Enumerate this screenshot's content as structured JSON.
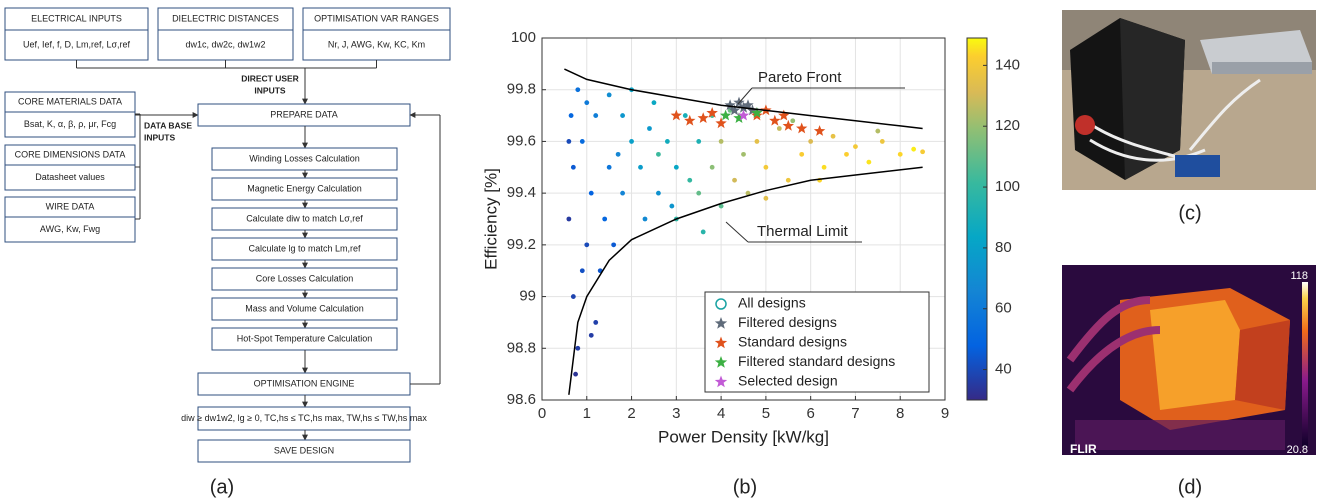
{
  "flowchart": {
    "inputs": [
      {
        "title": "ELECTRICAL INPUTS",
        "body": "Uef, Ief, f, D, Lm,ref, Lσ,ref"
      },
      {
        "title": "DIELECTRIC DISTANCES",
        "body": "dw1c, dw2c, dw1w2"
      },
      {
        "title": "OPTIMISATION VAR RANGES",
        "body": "Nr, J, AWG, Kw, KC, Km"
      }
    ],
    "direct_label": [
      "DIRECT USER",
      "INPUTS"
    ],
    "databases": [
      {
        "title": "CORE MATERIALS DATA",
        "body": "Bsat, K, α, β, ρ, μr, Fcg"
      },
      {
        "title": "CORE DIMENSIONS DATA",
        "body": "Datasheet values"
      },
      {
        "title": "WIRE DATA",
        "body": "AWG, Kw, Fwg"
      }
    ],
    "database_label": [
      "DATA BASE",
      "INPUTS"
    ],
    "prepare": "PREPARE DATA",
    "steps": [
      "Winding Losses Calculation",
      "Magnetic Energy Calculation",
      "Calculate diw to match Lσ,ref",
      "Calculate lg to match Lm,ref",
      "Core Losses Calculation",
      "Mass and Volume Calculation",
      "Hot-Spot Temperature Calculation"
    ],
    "engine": "OPTIMISATION ENGINE",
    "constraints": "diw ≥ dw1w2, lg ≥ 0, TC,hs ≤ TC,hs max, TW,hs ≤ TW,hs max",
    "save": "SAVE DESIGN",
    "caption": "(a)"
  },
  "chart_data": {
    "type": "scatter",
    "caption": "(b)",
    "xlabel": "Power Density [kW/kg]",
    "ylabel": "Efficiency [%]",
    "xlim": [
      0,
      9
    ],
    "ylim": [
      98.6,
      100
    ],
    "xticks": [
      0,
      1,
      2,
      3,
      4,
      5,
      6,
      7,
      8,
      9
    ],
    "yticks": [
      98.6,
      98.8,
      99,
      99.2,
      99.4,
      99.6,
      99.8,
      100
    ],
    "grid": true,
    "legend": "lower right",
    "colormap": "parula",
    "clim": [
      30,
      149
    ],
    "colorbar_ticks": [
      40,
      60,
      80,
      100,
      120,
      140
    ],
    "series": [
      {
        "name": "All designs",
        "color": "#1aa3a3",
        "marker": "circle",
        "x": [
          0.6,
          0.7,
          0.8,
          0.9,
          0.7,
          0.65,
          0.8,
          1.0,
          1.1,
          0.9,
          1.2,
          1.3,
          1.0,
          1.2,
          1.4,
          1.5,
          0.75,
          1.6,
          0.6,
          1.1,
          1.5,
          1.8,
          2.0,
          2.2,
          1.8,
          2.5,
          2.6,
          2.3,
          2.0,
          2.8,
          3.0,
          3.2,
          2.4,
          1.7,
          2.9,
          3.5,
          3.5,
          3.8,
          4.0,
          4.3,
          4.5,
          4.8,
          5.0,
          5.3,
          5.5,
          5.8,
          6.0,
          6.3,
          6.5,
          6.8,
          7.0,
          7.3,
          7.6,
          8.0,
          8.3,
          8.5,
          3.8,
          4.2,
          3.0,
          2.6,
          3.3,
          4.6,
          5.6,
          6.2,
          7.5,
          3.6,
          4.0,
          5.0
        ],
        "values": [
          99.3,
          99.0,
          98.8,
          99.1,
          99.5,
          99.7,
          99.8,
          99.2,
          99.4,
          99.6,
          98.9,
          99.1,
          99.75,
          99.7,
          99.3,
          99.5,
          98.7,
          99.2,
          99.6,
          98.85,
          99.78,
          99.7,
          99.6,
          99.5,
          99.4,
          99.75,
          99.4,
          99.3,
          99.8,
          99.6,
          99.5,
          99.7,
          99.65,
          99.55,
          99.35,
          99.6,
          99.4,
          99.5,
          99.6,
          99.45,
          99.55,
          99.6,
          99.5,
          99.65,
          99.45,
          99.55,
          99.6,
          99.5,
          99.62,
          99.55,
          99.58,
          99.52,
          99.6,
          99.55,
          99.57,
          99.56,
          99.7,
          99.72,
          99.3,
          99.55,
          99.45,
          99.4,
          99.68,
          99.45,
          99.64,
          99.25,
          99.35,
          99.38
        ],
        "color_values": [
          35,
          38,
          36,
          42,
          45,
          50,
          55,
          40,
          48,
          52,
          37,
          44,
          60,
          62,
          50,
          58,
          33,
          45,
          40,
          36,
          70,
          75,
          80,
          78,
          65,
          85,
          72,
          68,
          82,
          88,
          84,
          90,
          76,
          66,
          74,
          92,
          110,
          118,
          125,
          130,
          122,
          135,
          140,
          128,
          138,
          142,
          132,
          145,
          136,
          143,
          140,
          146,
          138,
          144,
          147,
          141,
          105,
          112,
          98,
          102,
          100,
          126,
          120,
          144,
          125,
          96,
          108,
          134
        ]
      },
      {
        "name": "Filtered designs",
        "color": "#5f6b7a",
        "marker": "star",
        "x": [
          4.2,
          4.4,
          4.6,
          4.5,
          4.3,
          4.7
        ],
        "values": [
          99.74,
          99.75,
          99.74,
          99.73,
          99.72,
          99.72
        ]
      },
      {
        "name": "Standard designs",
        "color": "#e0521c",
        "marker": "star",
        "x": [
          3.0,
          3.3,
          3.6,
          4.0,
          4.8,
          5.2,
          5.5,
          5.8,
          6.2,
          5.0,
          3.8,
          5.4
        ],
        "values": [
          99.7,
          99.68,
          99.69,
          99.67,
          99.7,
          99.68,
          99.66,
          99.65,
          99.64,
          99.72,
          99.71,
          99.7
        ]
      },
      {
        "name": "Filtered standard designs",
        "color": "#3cb043",
        "marker": "star",
        "x": [
          4.1,
          4.4,
          4.8
        ],
        "values": [
          99.7,
          99.69,
          99.71
        ]
      },
      {
        "name": "Selected design",
        "color": "#c25bd6",
        "marker": "star",
        "x": [
          4.5
        ],
        "values": [
          99.7
        ]
      }
    ],
    "curves": [
      {
        "name": "Pareto Front",
        "x": [
          0.5,
          1,
          2,
          3,
          4,
          5,
          6,
          7,
          8,
          8.5
        ],
        "values": [
          99.88,
          99.84,
          99.8,
          99.77,
          99.74,
          99.72,
          99.7,
          99.68,
          99.66,
          99.65
        ]
      },
      {
        "name": "Thermal Limit",
        "x": [
          0.6,
          0.8,
          1,
          1.5,
          2,
          3,
          4,
          5,
          6,
          7,
          8.5
        ],
        "values": [
          98.62,
          98.9,
          99.0,
          99.14,
          99.22,
          99.3,
          99.36,
          99.41,
          99.45,
          99.47,
          99.5
        ]
      }
    ]
  },
  "photos": {
    "c": {
      "caption": "(c)"
    },
    "d": {
      "caption": "(d)",
      "scale_max": 118,
      "scale_min": 20.8,
      "brand": "FLIR"
    }
  }
}
